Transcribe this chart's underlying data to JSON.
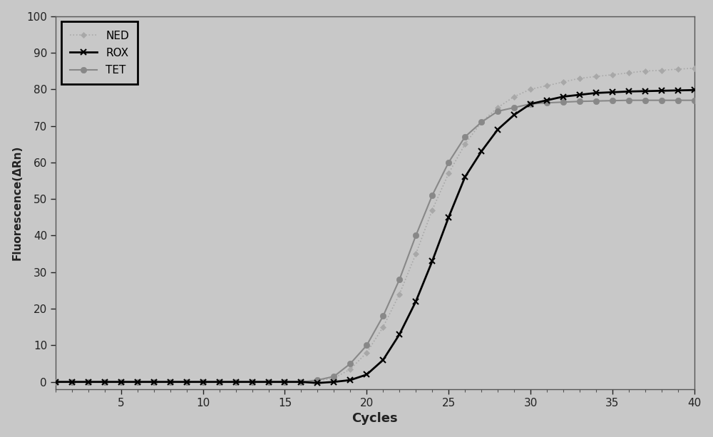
{
  "title": "",
  "xlabel": "Cycles",
  "ylabel": "Fluorescence(ΔRn)",
  "xlim": [
    1,
    40
  ],
  "ylim": [
    -2,
    100
  ],
  "xticks": [
    5,
    10,
    15,
    20,
    25,
    30,
    35,
    40
  ],
  "yticks": [
    0,
    10,
    20,
    30,
    40,
    50,
    60,
    70,
    80,
    90,
    100
  ],
  "background_color": "#c8c8c8",
  "plot_bg_color": "#c8c8c8",
  "ned_color": "#a8a8a8",
  "rox_color": "#000000",
  "tet_color": "#888888",
  "ned_label": "NED",
  "rox_label": "ROX",
  "tet_label": "TET",
  "cycles": [
    1,
    2,
    3,
    4,
    5,
    6,
    7,
    8,
    9,
    10,
    11,
    12,
    13,
    14,
    15,
    16,
    17,
    18,
    19,
    20,
    21,
    22,
    23,
    24,
    25,
    26,
    27,
    28,
    29,
    30,
    31,
    32,
    33,
    34,
    35,
    36,
    37,
    38,
    39,
    40
  ],
  "ned_values": [
    0,
    0,
    0,
    0,
    0,
    0,
    0,
    0,
    0,
    0,
    0,
    0,
    0,
    0,
    0,
    0,
    0.3,
    1.0,
    3.5,
    8,
    15,
    24,
    35,
    47,
    57,
    65,
    71,
    75,
    78,
    80,
    81,
    82,
    83,
    83.5,
    84,
    84.5,
    85,
    85.2,
    85.5,
    85.8
  ],
  "rox_values": [
    0,
    0,
    0,
    0,
    0,
    0,
    0,
    0,
    0,
    0,
    0,
    0,
    0,
    0,
    0,
    0,
    -0.3,
    0,
    0.5,
    2,
    6,
    13,
    22,
    33,
    45,
    56,
    63,
    69,
    73,
    76,
    77,
    78,
    78.5,
    79,
    79.2,
    79.4,
    79.5,
    79.6,
    79.7,
    79.8
  ],
  "tet_values": [
    0,
    0,
    0,
    0,
    0,
    0,
    0,
    0,
    0,
    0,
    0,
    0,
    0,
    0,
    0,
    0,
    0.5,
    1.5,
    5,
    10,
    18,
    28,
    40,
    51,
    60,
    67,
    71,
    74,
    75,
    76,
    76.3,
    76.5,
    76.7,
    76.8,
    76.9,
    77,
    77,
    77,
    77,
    77
  ]
}
